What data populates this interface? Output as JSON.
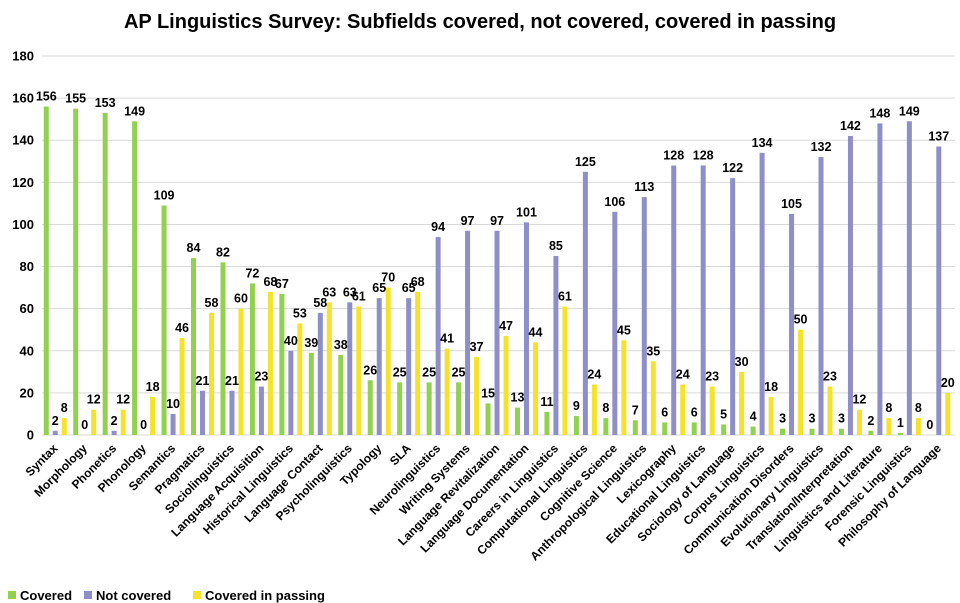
{
  "chart_data": {
    "type": "bar",
    "title": "AP Linguistics Survey: Subfields covered, not covered, covered in passing",
    "xlabel": "",
    "ylabel": "",
    "ylim": [
      0,
      180
    ],
    "yticks": [
      0,
      20,
      40,
      60,
      80,
      100,
      120,
      140,
      160,
      180
    ],
    "grid": true,
    "legend_position": "bottom-left",
    "categories": [
      "Syntax",
      "Morphology",
      "Phonetics",
      "Phonology",
      "Semantics",
      "Pragmatics",
      "Sociolinguistics",
      "Language Acquisition",
      "Historical Linguistics",
      "Language Contact",
      "Psycholinguistics",
      "Typology",
      "SLA",
      "Neurolinguistics",
      "Writing Systems",
      "Language Revitalization",
      "Language Documentation",
      "Careers in Linguistics",
      "Computational Linguistics",
      "Cognitive Science",
      "Anthropological Linguistics",
      "Lexicography",
      "Educational Linguistics",
      "Sociology of Language",
      "Corpus Linguistics",
      "Communication Disorders",
      "Evolutionary Linguistics",
      "Translation/Interpretation",
      "Linguistics and Literature",
      "Forensic Linguistics",
      "Philosophy of Language"
    ],
    "series": [
      {
        "name": "Covered",
        "color": "#92d050",
        "values": [
          156,
          155,
          153,
          149,
          109,
          84,
          82,
          72,
          67,
          39,
          38,
          26,
          25,
          25,
          25,
          15,
          13,
          11,
          9,
          8,
          7,
          6,
          6,
          5,
          4,
          3,
          3,
          3,
          2,
          1,
          0
        ]
      },
      {
        "name": "Not covered",
        "color": "#8e8ec9",
        "values": [
          2,
          0,
          2,
          0,
          10,
          21,
          21,
          23,
          40,
          58,
          63,
          65,
          65,
          94,
          97,
          97,
          101,
          85,
          125,
          106,
          113,
          128,
          128,
          122,
          134,
          105,
          132,
          142,
          148,
          149,
          137
        ]
      },
      {
        "name": "Covered in passing",
        "color": "#f5e22a",
        "values": [
          8,
          12,
          12,
          18,
          46,
          58,
          60,
          68,
          53,
          63,
          61,
          70,
          68,
          41,
          37,
          47,
          44,
          61,
          24,
          45,
          35,
          24,
          23,
          30,
          18,
          50,
          23,
          12,
          8,
          8,
          20
        ]
      }
    ]
  }
}
